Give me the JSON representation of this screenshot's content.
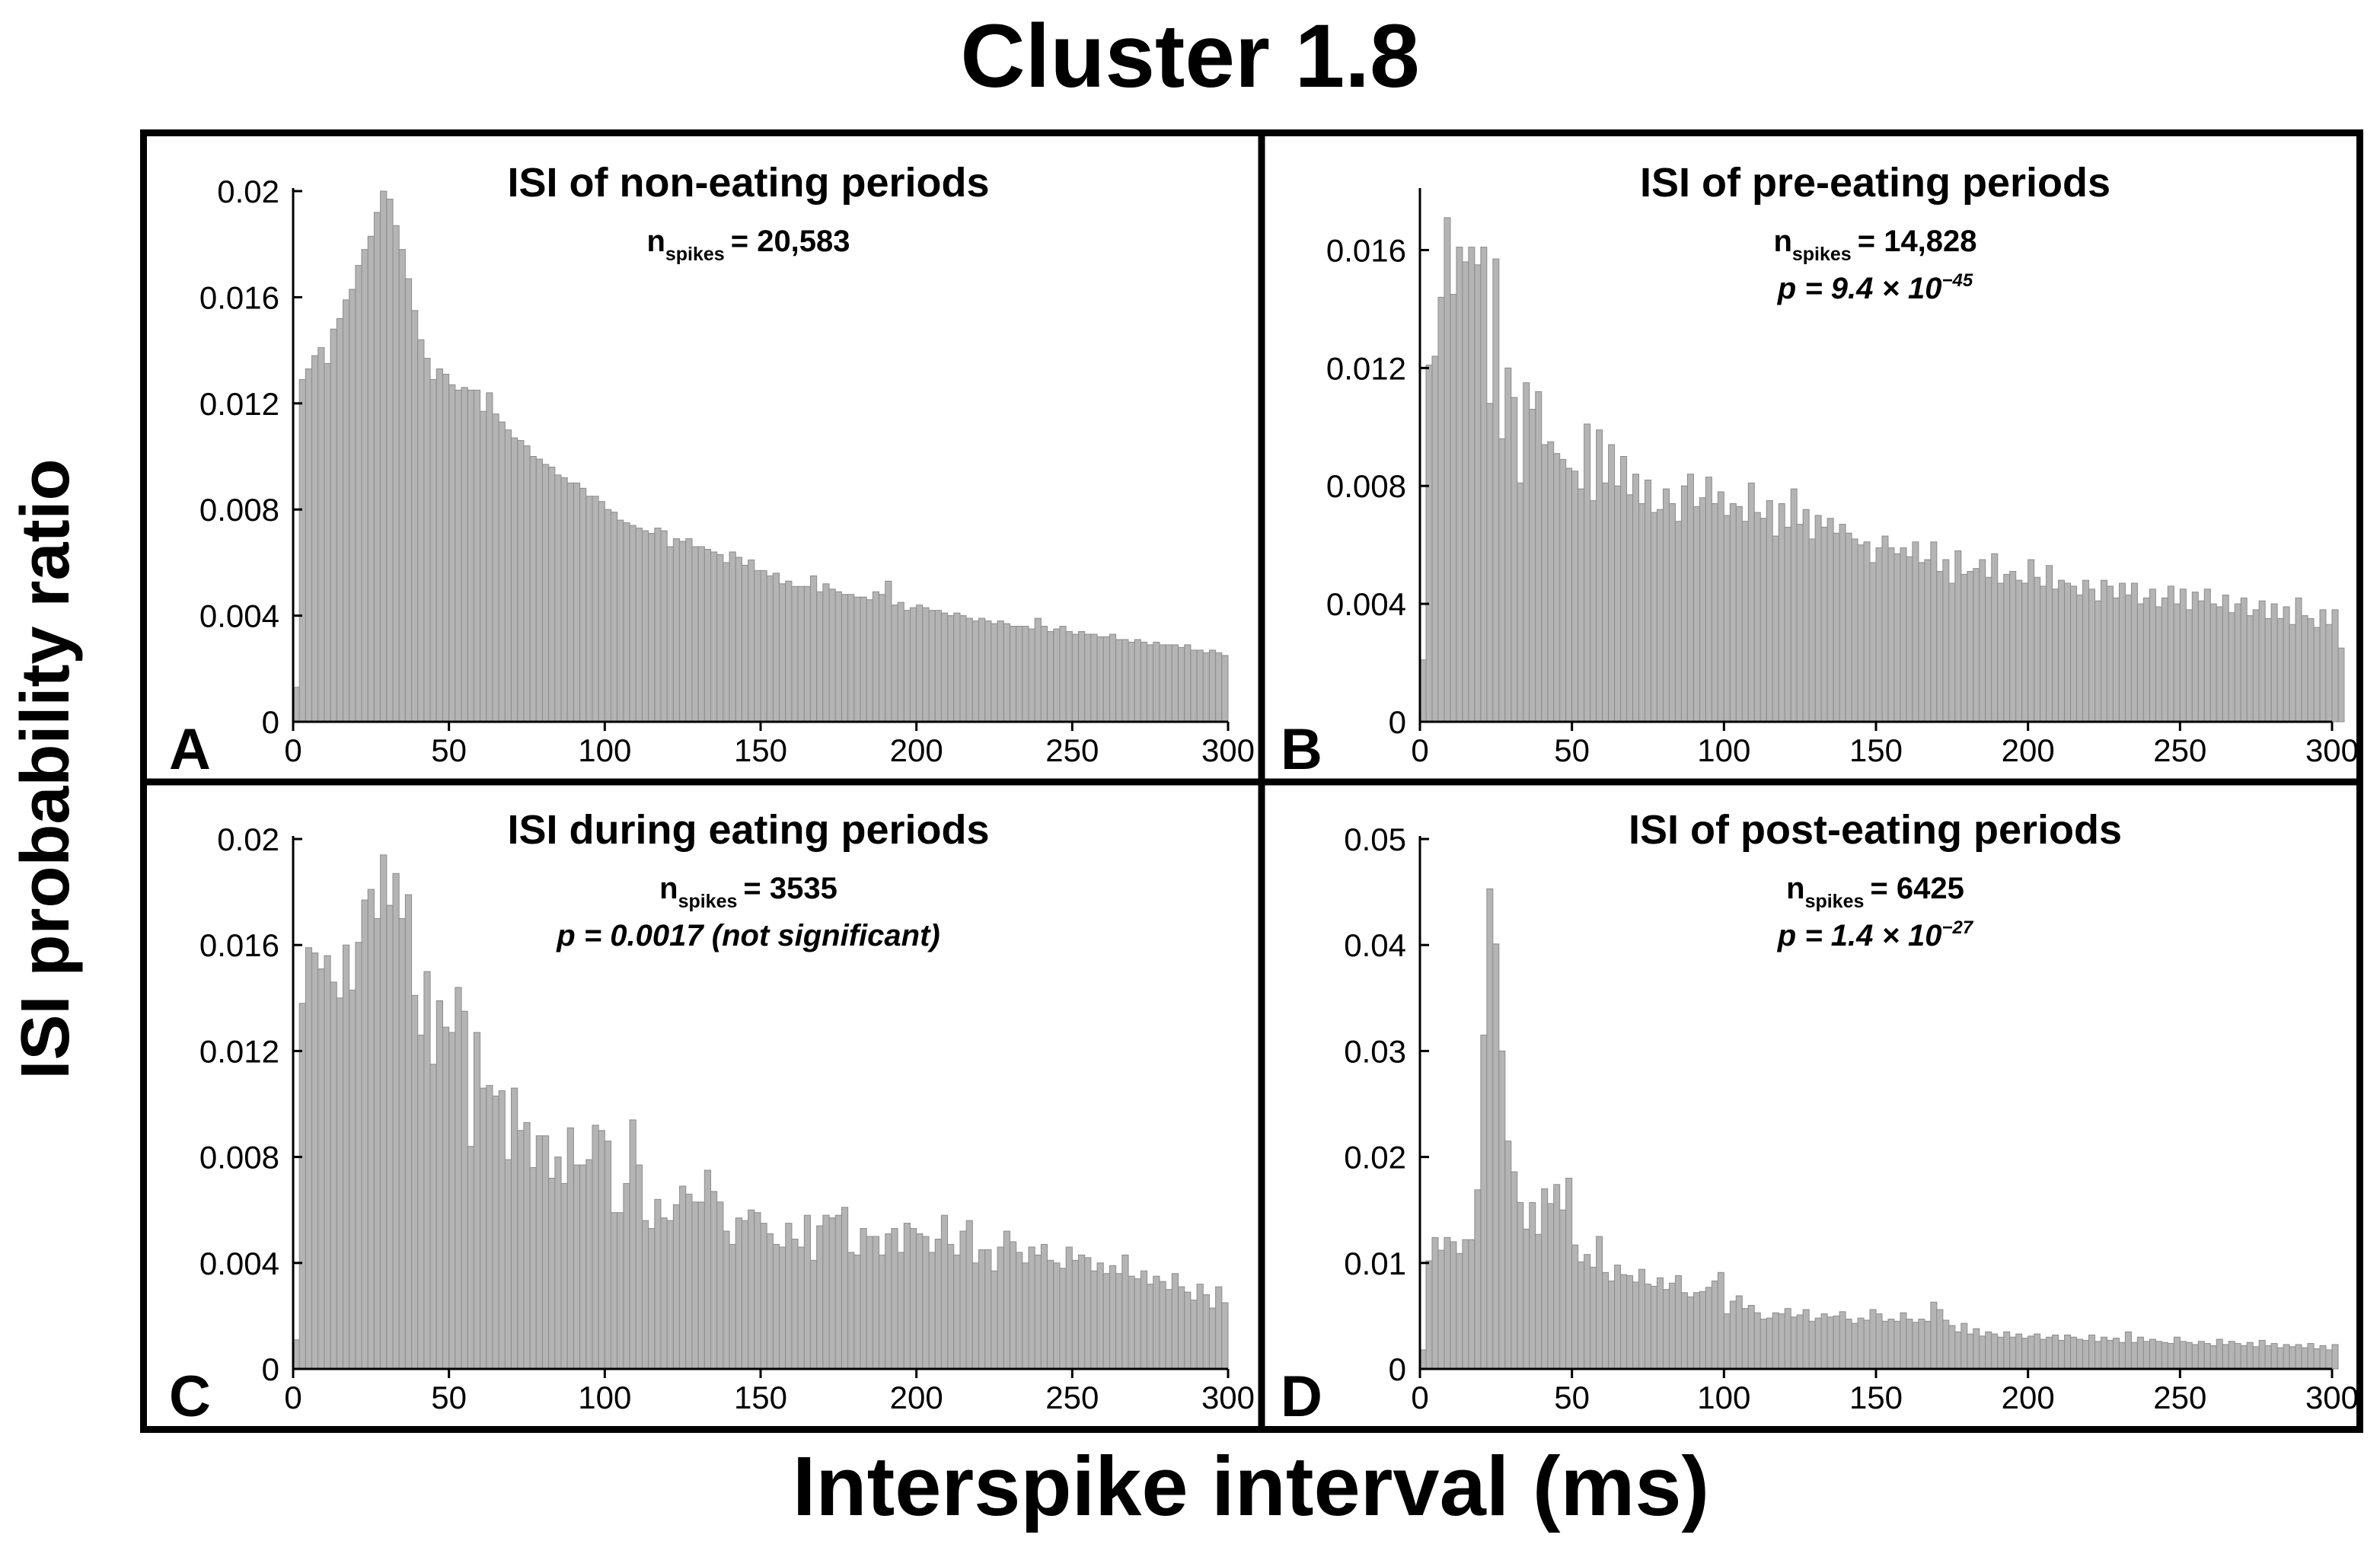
{
  "figure": {
    "title": "Cluster 1.8",
    "xlabel": "Interspike interval (ms)",
    "ylabel": "ISI probability ratio",
    "bar_color": "#b4b4b4",
    "bar_edge_color": "#8c8c8c"
  },
  "chart_data": [
    {
      "type": "bar",
      "panel": "A",
      "title": "ISI of non-eating periods",
      "n_prefix": "n",
      "n_sub": "spikes",
      "n_value": "= 20,583",
      "p_prefix": "",
      "p_sup": "",
      "p_suffix": "",
      "xlabel": "Interspike interval (ms)",
      "ylabel": "ISI probability ratio",
      "xlim": [
        0,
        300
      ],
      "ylim": [
        0,
        0.02
      ],
      "bin_width_ms": 2,
      "xticks": [
        "0",
        "50",
        "100",
        "150",
        "200",
        "250",
        "300"
      ],
      "yticks": [
        "0",
        "0.004",
        "0.008",
        "0.012",
        "0.016",
        "0.02"
      ],
      "values": [
        0.0013,
        0.0129,
        0.0133,
        0.0138,
        0.0141,
        0.0135,
        0.0148,
        0.0152,
        0.0159,
        0.0163,
        0.0172,
        0.0178,
        0.0183,
        0.0192,
        0.02,
        0.0197,
        0.0187,
        0.0178,
        0.0167,
        0.0155,
        0.0144,
        0.0137,
        0.0129,
        0.0133,
        0.0131,
        0.0127,
        0.0125,
        0.0126,
        0.0125,
        0.0125,
        0.0117,
        0.0124,
        0.0116,
        0.0113,
        0.011,
        0.0107,
        0.0106,
        0.0104,
        0.01,
        0.0099,
        0.0097,
        0.0096,
        0.0093,
        0.0092,
        0.009,
        0.009,
        0.0088,
        0.0085,
        0.0085,
        0.0083,
        0.008,
        0.0079,
        0.0076,
        0.0075,
        0.0074,
        0.0073,
        0.0072,
        0.0071,
        0.0073,
        0.0072,
        0.0066,
        0.0069,
        0.0068,
        0.0069,
        0.0066,
        0.0066,
        0.0065,
        0.0064,
        0.0063,
        0.006,
        0.0064,
        0.0062,
        0.0059,
        0.0061,
        0.0057,
        0.0057,
        0.0055,
        0.0056,
        0.0052,
        0.0053,
        0.0051,
        0.0051,
        0.0051,
        0.0055,
        0.0049,
        0.0052,
        0.005,
        0.0049,
        0.0048,
        0.0048,
        0.0047,
        0.0047,
        0.0046,
        0.0049,
        0.0048,
        0.0053,
        0.0044,
        0.0045,
        0.0042,
        0.0043,
        0.0044,
        0.0043,
        0.0042,
        0.0042,
        0.0041,
        0.004,
        0.0041,
        0.004,
        0.0039,
        0.0038,
        0.0039,
        0.0038,
        0.0037,
        0.0038,
        0.0037,
        0.0036,
        0.0036,
        0.0036,
        0.0035,
        0.0039,
        0.0036,
        0.0034,
        0.0035,
        0.0036,
        0.0034,
        0.0033,
        0.0034,
        0.0033,
        0.0033,
        0.0032,
        0.0032,
        0.0033,
        0.0031,
        0.0031,
        0.003,
        0.0031,
        0.003,
        0.0029,
        0.003,
        0.0029,
        0.0029,
        0.0029,
        0.0028,
        0.0029,
        0.0027,
        0.0027,
        0.0026,
        0.0027,
        0.0026,
        0.0025
      ]
    },
    {
      "type": "bar",
      "panel": "B",
      "title": "ISI of pre-eating periods",
      "n_prefix": "n",
      "n_sub": "spikes",
      "n_value": "= 14,828",
      "p_prefix": "p = 9.4 × 10",
      "p_sup": "−45",
      "p_suffix": "",
      "xlabel": "Interspike interval (ms)",
      "ylabel": "ISI probability ratio",
      "xlim": [
        0,
        300
      ],
      "ylim": [
        0,
        0.018
      ],
      "bin_width_ms": 2,
      "xticks": [
        "0",
        "50",
        "100",
        "150",
        "200",
        "250",
        "300"
      ],
      "yticks": [
        "0",
        "0.004",
        "0.008",
        "0.012",
        "0.016"
      ],
      "values": [
        0.0021,
        0.0121,
        0.0124,
        0.0144,
        0.0171,
        0.0145,
        0.0161,
        0.0156,
        0.0161,
        0.0155,
        0.0161,
        0.0108,
        0.0157,
        0.0096,
        0.012,
        0.011,
        0.0081,
        0.0115,
        0.0106,
        0.0112,
        0.0094,
        0.0095,
        0.0091,
        0.0089,
        0.0086,
        0.0085,
        0.0079,
        0.0101,
        0.0075,
        0.0099,
        0.0081,
        0.0094,
        0.008,
        0.009,
        0.0077,
        0.0084,
        0.0074,
        0.0082,
        0.0071,
        0.0072,
        0.0079,
        0.0074,
        0.0068,
        0.008,
        0.0084,
        0.0073,
        0.0076,
        0.0083,
        0.0074,
        0.0078,
        0.007,
        0.0074,
        0.0073,
        0.0068,
        0.0081,
        0.0071,
        0.0069,
        0.0075,
        0.0063,
        0.0074,
        0.0066,
        0.0079,
        0.0067,
        0.0072,
        0.0062,
        0.007,
        0.0066,
        0.0069,
        0.0064,
        0.0067,
        0.0064,
        0.0062,
        0.006,
        0.0061,
        0.0054,
        0.0059,
        0.0063,
        0.0059,
        0.0057,
        0.0059,
        0.0056,
        0.0061,
        0.0054,
        0.0055,
        0.0061,
        0.0051,
        0.0055,
        0.0047,
        0.0058,
        0.005,
        0.0051,
        0.0052,
        0.0055,
        0.0049,
        0.0057,
        0.0047,
        0.005,
        0.0051,
        0.0048,
        0.0047,
        0.0055,
        0.0049,
        0.0046,
        0.0053,
        0.0045,
        0.0048,
        0.0047,
        0.0046,
        0.0043,
        0.0048,
        0.0045,
        0.0041,
        0.0048,
        0.0046,
        0.0042,
        0.0047,
        0.0043,
        0.0047,
        0.004,
        0.0042,
        0.0045,
        0.0039,
        0.0042,
        0.0046,
        0.004,
        0.0045,
        0.0038,
        0.0044,
        0.0041,
        0.0045,
        0.004,
        0.0039,
        0.0043,
        0.0037,
        0.004,
        0.0042,
        0.0036,
        0.0038,
        0.0041,
        0.0035,
        0.004,
        0.0035,
        0.0039,
        0.0033,
        0.0042,
        0.0036,
        0.0035,
        0.0032,
        0.0038,
        0.0033,
        0.0038,
        0.0025
      ]
    },
    {
      "type": "bar",
      "panel": "C",
      "title": "ISI during eating periods",
      "n_prefix": "n",
      "n_sub": "spikes",
      "n_value": "= 3535",
      "p_prefix": "p = 0.0017 (not significant)",
      "p_sup": "",
      "p_suffix": "",
      "xlabel": "Interspike interval (ms)",
      "ylabel": "ISI probability ratio",
      "xlim": [
        0,
        300
      ],
      "ylim": [
        0,
        0.02
      ],
      "bin_width_ms": 2,
      "xticks": [
        "0",
        "50",
        "100",
        "150",
        "200",
        "250",
        "300"
      ],
      "yticks": [
        "0",
        "0.004",
        "0.008",
        "0.012",
        "0.016",
        "0.02"
      ],
      "values": [
        0.0011,
        0.0138,
        0.0159,
        0.0157,
        0.0151,
        0.0156,
        0.0146,
        0.014,
        0.016,
        0.0143,
        0.0161,
        0.0177,
        0.0181,
        0.017,
        0.0194,
        0.0175,
        0.0187,
        0.017,
        0.0179,
        0.0141,
        0.0126,
        0.015,
        0.0115,
        0.0139,
        0.0129,
        0.0127,
        0.0144,
        0.0135,
        0.0084,
        0.0127,
        0.0106,
        0.0107,
        0.0103,
        0.0105,
        0.0079,
        0.0106,
        0.009,
        0.0093,
        0.0076,
        0.0088,
        0.0088,
        0.0072,
        0.008,
        0.007,
        0.0091,
        0.0077,
        0.0077,
        0.0079,
        0.0092,
        0.009,
        0.0086,
        0.0059,
        0.0059,
        0.007,
        0.0094,
        0.0077,
        0.0056,
        0.0053,
        0.0064,
        0.0057,
        0.0056,
        0.0062,
        0.0069,
        0.0066,
        0.0063,
        0.0063,
        0.0075,
        0.0067,
        0.0063,
        0.0052,
        0.0047,
        0.0057,
        0.0056,
        0.006,
        0.0059,
        0.0055,
        0.0051,
        0.0047,
        0.0046,
        0.0055,
        0.0049,
        0.0046,
        0.0058,
        0.0041,
        0.0054,
        0.0058,
        0.0057,
        0.0058,
        0.0061,
        0.0044,
        0.0043,
        0.0053,
        0.005,
        0.005,
        0.0043,
        0.0051,
        0.0053,
        0.0044,
        0.0055,
        0.0053,
        0.0051,
        0.005,
        0.0044,
        0.0049,
        0.0058,
        0.0047,
        0.0043,
        0.0052,
        0.0056,
        0.004,
        0.0045,
        0.0045,
        0.0037,
        0.0046,
        0.0052,
        0.0048,
        0.0044,
        0.004,
        0.0046,
        0.0043,
        0.0047,
        0.0041,
        0.004,
        0.0038,
        0.0046,
        0.0041,
        0.0043,
        0.0042,
        0.0037,
        0.004,
        0.0036,
        0.0039,
        0.0036,
        0.0043,
        0.0035,
        0.0034,
        0.0037,
        0.0032,
        0.0035,
        0.0033,
        0.003,
        0.0036,
        0.0031,
        0.0029,
        0.0026,
        0.0032,
        0.0028,
        0.0023,
        0.0031,
        0.0025
      ]
    },
    {
      "type": "bar",
      "panel": "D",
      "title": "ISI of post-eating periods",
      "n_prefix": "n",
      "n_sub": "spikes",
      "n_value": "= 6425",
      "p_prefix": "p = 1.4 × 10",
      "p_sup": "−27",
      "p_suffix": "",
      "xlabel": "Interspike interval (ms)",
      "ylabel": "ISI probability ratio",
      "xlim": [
        0,
        300
      ],
      "ylim": [
        0,
        0.05
      ],
      "bin_width_ms": 2,
      "xticks": [
        "0",
        "50",
        "100",
        "150",
        "200",
        "250",
        "300"
      ],
      "yticks": [
        "0",
        "0.01",
        "0.02",
        "0.03",
        "0.04",
        "0.05"
      ],
      "values": [
        0.0018,
        0.0102,
        0.0124,
        0.0112,
        0.0124,
        0.012,
        0.0109,
        0.0122,
        0.0122,
        0.0169,
        0.0315,
        0.0453,
        0.0401,
        0.03,
        0.0215,
        0.0186,
        0.0157,
        0.0132,
        0.0157,
        0.0127,
        0.017,
        0.0156,
        0.0174,
        0.015,
        0.018,
        0.0117,
        0.0101,
        0.0108,
        0.0096,
        0.0125,
        0.0091,
        0.0083,
        0.0098,
        0.0089,
        0.0088,
        0.0082,
        0.0094,
        0.008,
        0.0078,
        0.0086,
        0.0075,
        0.0081,
        0.0088,
        0.0072,
        0.0068,
        0.0072,
        0.0073,
        0.0077,
        0.0083,
        0.0091,
        0.0052,
        0.0064,
        0.0069,
        0.0057,
        0.006,
        0.0053,
        0.0047,
        0.0048,
        0.0053,
        0.0052,
        0.0057,
        0.0049,
        0.0051,
        0.0056,
        0.0045,
        0.0048,
        0.0052,
        0.0049,
        0.005,
        0.0054,
        0.0047,
        0.0043,
        0.0048,
        0.0046,
        0.0056,
        0.0052,
        0.0045,
        0.0047,
        0.0045,
        0.0053,
        0.0047,
        0.0044,
        0.0047,
        0.0045,
        0.0063,
        0.0056,
        0.0046,
        0.0041,
        0.0035,
        0.0043,
        0.0033,
        0.0038,
        0.0031,
        0.0035,
        0.0033,
        0.003,
        0.0035,
        0.003,
        0.0033,
        0.0029,
        0.0031,
        0.0033,
        0.0028,
        0.003,
        0.0032,
        0.0027,
        0.0032,
        0.003,
        0.0028,
        0.0027,
        0.0032,
        0.0026,
        0.003,
        0.0027,
        0.0029,
        0.0025,
        0.0035,
        0.0025,
        0.003,
        0.0026,
        0.0028,
        0.0026,
        0.0025,
        0.0024,
        0.003,
        0.0026,
        0.0025,
        0.0023,
        0.0026,
        0.0024,
        0.0022,
        0.0028,
        0.0023,
        0.0026,
        0.0024,
        0.0022,
        0.0025,
        0.0021,
        0.0027,
        0.0022,
        0.0024,
        0.002,
        0.0023,
        0.0021,
        0.0023,
        0.002,
        0.0024,
        0.0019,
        0.0022,
        0.0018,
        0.0023
      ]
    }
  ]
}
